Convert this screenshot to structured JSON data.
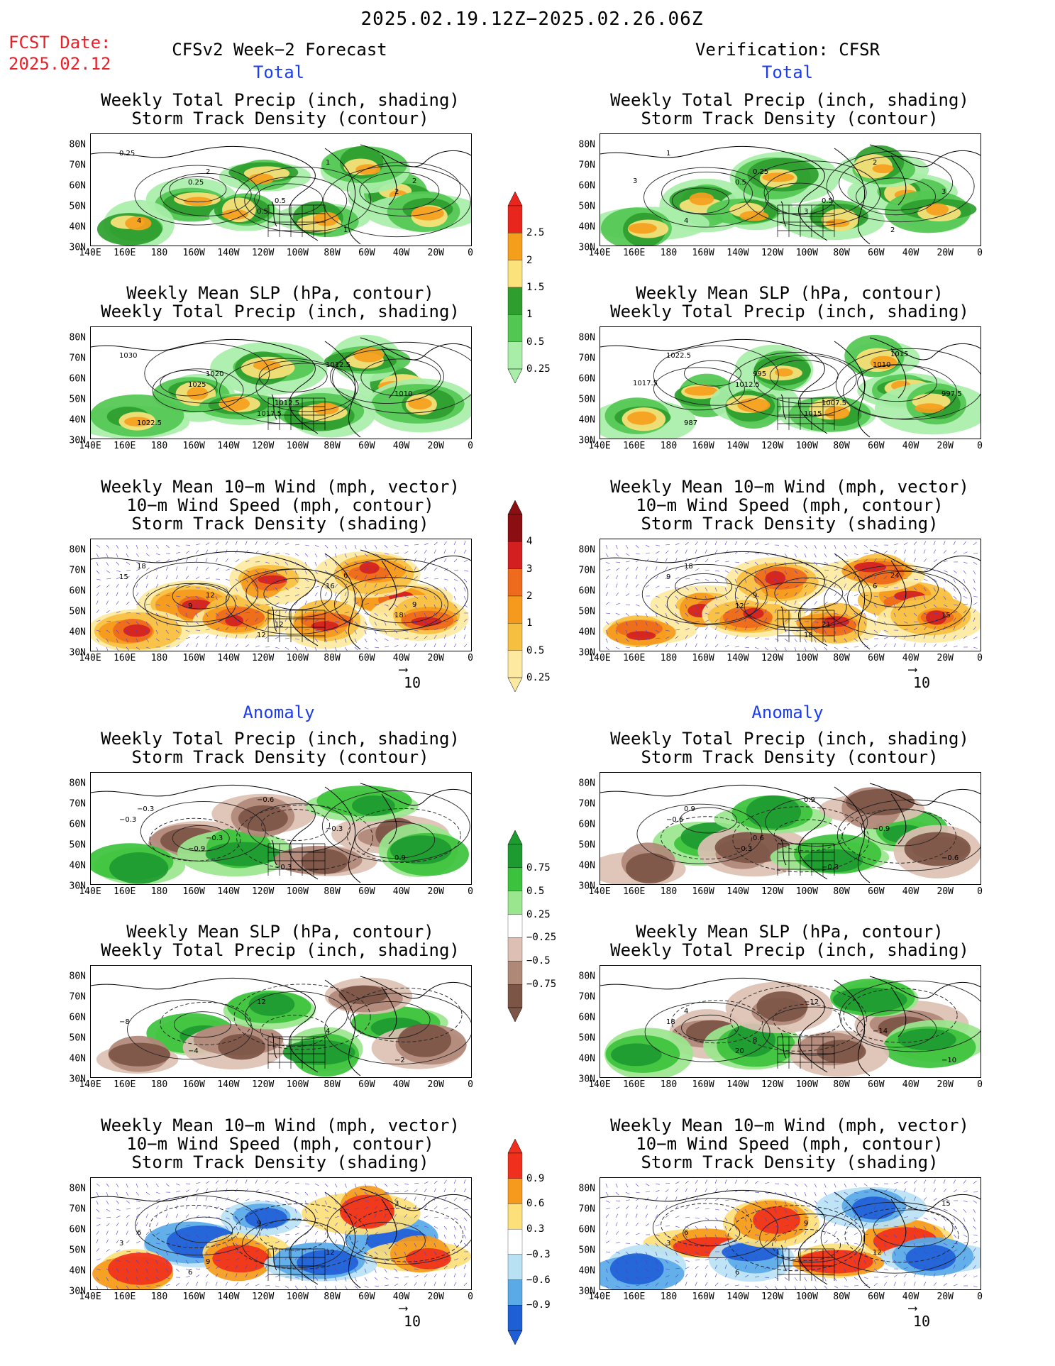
{
  "header": {
    "date_range": "2025.02.19.12Z−2025.02.26.06Z",
    "fcst_label": "FCST Date:",
    "fcst_date": "2025.02.12",
    "left_column_title": "CFSv2 Week−2 Forecast",
    "right_column_title": "Verification: CFSR",
    "total_label": "Total",
    "anomaly_label": "Anomaly"
  },
  "axes": {
    "lat_labels": [
      "80N",
      "70N",
      "60N",
      "50N",
      "40N",
      "30N"
    ],
    "lon_labels": [
      "140E",
      "160E",
      "180",
      "160W",
      "140W",
      "120W",
      "100W",
      "80W",
      "60W",
      "40W",
      "20W",
      "0"
    ]
  },
  "panels": {
    "precip_storm": {
      "line1": "Weekly Total Precip (inch, shading)",
      "line2": "Storm Track Density (contour)"
    },
    "slp_precip": {
      "line1": "Weekly Mean SLP (hPa, contour)",
      "line2": "Weekly Total Precip (inch, shading)"
    },
    "wind": {
      "line1": "Weekly Mean 10−m Wind (mph, vector)",
      "line2": "10−m Wind Speed (mph, contour)",
      "line3": "Storm Track Density (shading)"
    }
  },
  "vector_reference": "10",
  "colorbars": {
    "total_precip": {
      "labels": [
        "2.5",
        "2",
        "1.5",
        "1",
        "0.5",
        "0.25"
      ],
      "colors": [
        "#e8261e",
        "#f59e1c",
        "#fce27a",
        "#2e9e2e",
        "#52c852",
        "#a8eea8"
      ]
    },
    "total_storm": {
      "labels": [
        "4",
        "3",
        "2",
        "1",
        "0.5",
        "0.25"
      ],
      "colors": [
        "#8b0e12",
        "#d31f1f",
        "#ee6a1c",
        "#f59a1c",
        "#f7bf40",
        "#fdeaa0"
      ]
    },
    "anom_precip": {
      "labels": [
        "0.75",
        "0.5",
        "0.25",
        "−0.25",
        "−0.5",
        "−0.75"
      ],
      "colors": [
        "#1d9a30",
        "#3cc23c",
        "#9ae68e",
        "#ffffff",
        "#ddc0b3",
        "#b08878",
        "#7d5546"
      ]
    },
    "anom_storm": {
      "labels": [
        "0.9",
        "0.6",
        "0.3",
        "−0.3",
        "−0.6",
        "−0.9"
      ],
      "colors": [
        "#f0301c",
        "#f59a1c",
        "#fde07a",
        "#ffffff",
        "#b8e2f4",
        "#5aaae8",
        "#1f5fd6"
      ]
    }
  },
  "map_annotations": {
    "f_precip": [
      "0.25",
      "0.25",
      "0.5",
      "1",
      "2",
      "4",
      "2",
      "0.5",
      "1",
      "2"
    ],
    "v_precip": [
      "1",
      "0.5",
      "3",
      "2",
      "3",
      "4",
      "0.25",
      "0.5",
      "2",
      "3"
    ],
    "f_slp": [
      "1030",
      "1025",
      "1017.5",
      "1012.5",
      "1010",
      "1022.5",
      "1020",
      "1012.5"
    ],
    "v_slp": [
      "1022.5",
      "1012.5",
      "1015",
      "1010",
      "997.5",
      "987",
      "995",
      "1007.5",
      "1015",
      "1017.5"
    ],
    "f_wind": [
      "15",
      "9",
      "12",
      "16",
      "18",
      "18",
      "12",
      "12",
      "6",
      "9"
    ],
    "v_wind": [
      "9",
      "12",
      "18",
      "6",
      "15",
      "18",
      "9",
      "21",
      "24"
    ],
    "fa_precip": [
      "−0.3",
      "−0.9",
      "−0.6",
      "−0.3",
      "0.9",
      "−0.3",
      "−0.3",
      "−0.3"
    ],
    "va_precip": [
      "−0.6",
      "−0.3",
      "0.9",
      "−0.9",
      "−0.6",
      "0.9",
      "0.6",
      "−0.3"
    ],
    "fa_slp": [
      "−8",
      "−4",
      "12",
      "4",
      "−2"
    ],
    "va_slp": [
      "18",
      "20",
      "−12",
      "−14",
      "−10",
      "4",
      "8"
    ],
    "fa_wind": [
      "3",
      "6",
      "9",
      "12",
      "3",
      "6",
      "9"
    ],
    "va_wind": [
      "3",
      "6",
      "9",
      "12",
      "15",
      "6"
    ]
  }
}
